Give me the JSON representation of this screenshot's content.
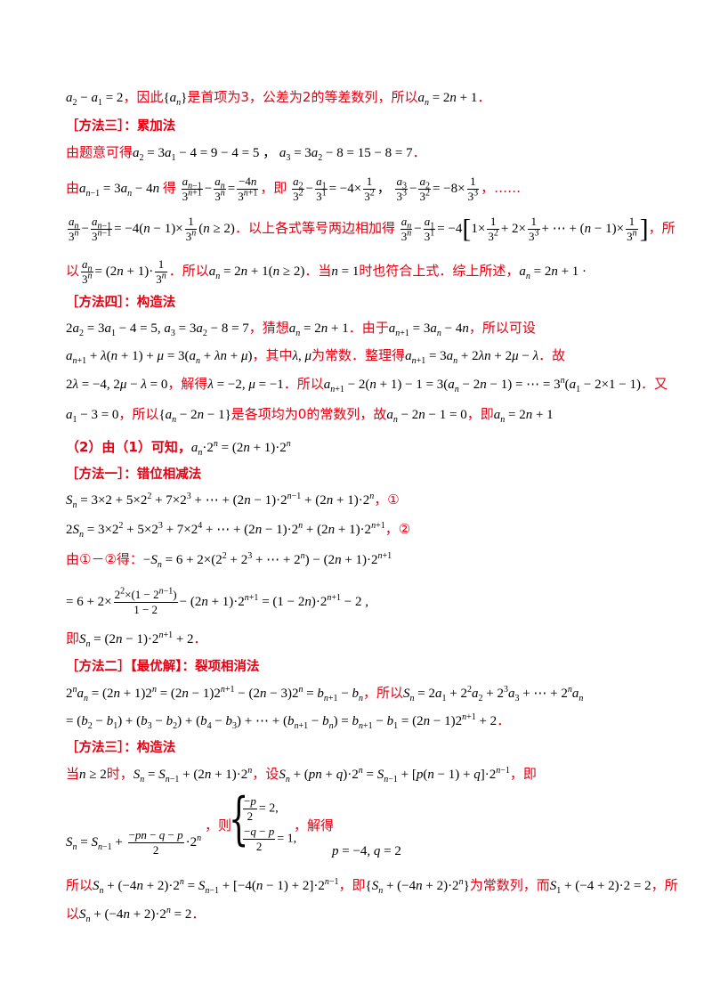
{
  "lines": {
    "l1_pre": "，因此",
    "l1_mid": "是首项为3，公差为2的等差数列，所以",
    "m3_head": "［方法三］：累加法",
    "l3_a": "由题意可得",
    "l4_a": "由",
    "l4_b": "得",
    "l4_c": "，即",
    "l5_a": "以上各式等号两边相加得",
    "l5_b": "，所",
    "l6_a": "以",
    "l6_b": "．所以",
    "l6_c": "．当",
    "l6_d": "时也符合上式．综上所述，",
    "m4_head": "［方法四］：构造法",
    "l8_a": "，猜想",
    "l8_b": "．由于",
    "l8_c": "，所以可设",
    "l9_a": "，其中",
    "l9_b": "为常数．整理得",
    "l9_c": "．故",
    "l10_a": "，解得",
    "l10_b": "．所以",
    "l10_c": "．又",
    "l11_a": "，所以",
    "l11_b": "是各项均为0的常数列，故",
    "l11_c": "，即",
    "part2": "（2）由（1）可知，",
    "s1_head": "［方法一］：错位相减法",
    "c1": "，①",
    "c2": "，②",
    "l15_a": "由①－②得：",
    "l17_a": "即",
    "s2_head": "［方法二］【最优解】：裂项相消法",
    "l18_a": "，所以",
    "s3_head": "［方法三］：构造法",
    "l20_a": "当",
    "l20_b": "时，",
    "l20_c": "，设",
    "l20_d": "，即",
    "l21_a": "，则",
    "l21_b": "，解得",
    "l22_a": "所以",
    "l22_b": "，即",
    "l22_c": "为常数列，而",
    "l22_d": "，所",
    "l23_a": "以"
  }
}
